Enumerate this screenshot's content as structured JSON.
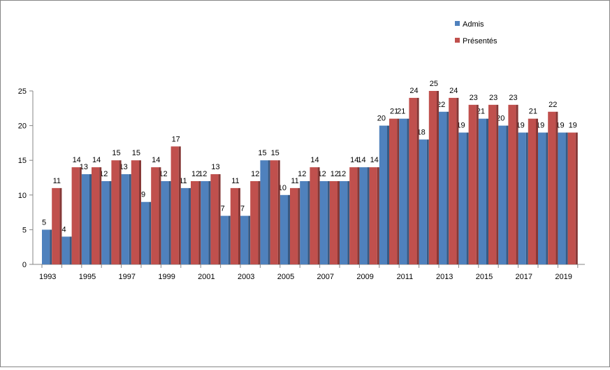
{
  "chart_data": {
    "type": "bar",
    "title": "",
    "xlabel": "",
    "ylabel": "",
    "ylim": [
      0,
      25
    ],
    "yticks": [
      0,
      5,
      10,
      15,
      20,
      25
    ],
    "grid": false,
    "legend_position": "top-right",
    "categories": [
      "1993",
      "1994",
      "1995",
      "1996",
      "1997",
      "1998",
      "1999",
      "2000",
      "2001",
      "2002",
      "2003",
      "2004",
      "2005",
      "2006",
      "2007",
      "2008",
      "2009",
      "2010",
      "2011",
      "2012",
      "2013",
      "2014",
      "2015",
      "2016",
      "2017",
      "2018",
      "2019"
    ],
    "x_tick_labels": [
      "1993",
      "1995",
      "1997",
      "1999",
      "2001",
      "2003",
      "2005",
      "2007",
      "2009",
      "2011",
      "2013",
      "2015",
      "2017",
      "2019"
    ],
    "series": [
      {
        "name": "Admis",
        "color": "#4f81bd",
        "values": [
          5,
          4,
          13,
          12,
          13,
          9,
          12,
          11,
          12,
          7,
          7,
          15,
          10,
          12,
          12,
          12,
          14,
          20,
          21,
          18,
          22,
          19,
          21,
          20,
          19,
          19,
          19
        ]
      },
      {
        "name": "Présentés",
        "color": "#c0504d",
        "values": [
          11,
          14,
          14,
          15,
          15,
          14,
          17,
          12,
          13,
          11,
          12,
          15,
          11,
          14,
          12,
          14,
          14,
          21,
          24,
          25,
          24,
          23,
          23,
          23,
          21,
          22,
          19
        ]
      }
    ]
  }
}
